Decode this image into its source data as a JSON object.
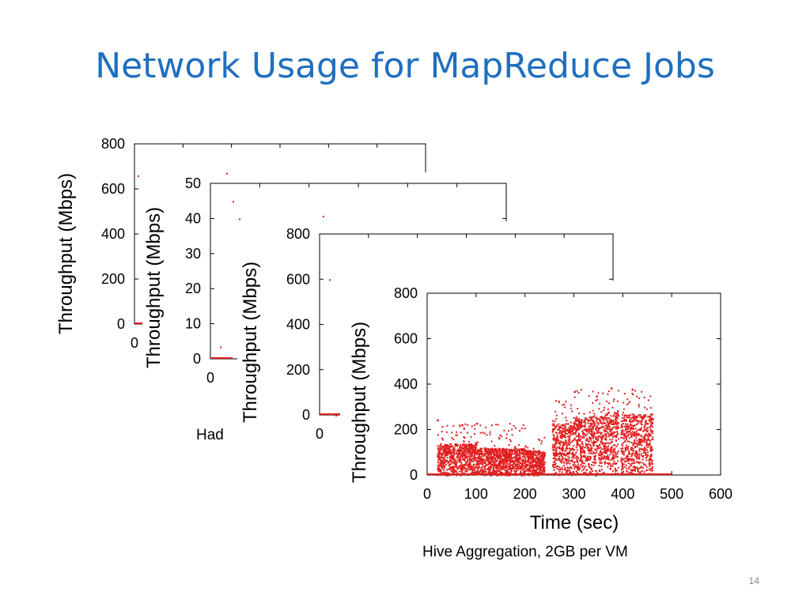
{
  "slide": {
    "title": "Network Usage for MapReduce Jobs",
    "page_number": "14",
    "partial_caption": "Had"
  },
  "colors": {
    "title": "#1f6fbf",
    "points": "#e02020",
    "axis": "#000000"
  },
  "chart_data": [
    {
      "type": "scatter",
      "ylabel": "Throughput (Mbps)",
      "xlabel": "",
      "ylim": [
        0,
        800
      ],
      "yticks": [
        "0",
        "200",
        "400",
        "600",
        "800"
      ],
      "xticks": [
        "0"
      ],
      "points": [
        [
          0,
          660
        ],
        [
          1,
          0
        ]
      ]
    },
    {
      "type": "scatter",
      "ylabel": "Throughput (Mbps)",
      "xlabel": "",
      "ylim": [
        0,
        50
      ],
      "yticks": [
        "0",
        "10",
        "20",
        "30",
        "40",
        "50"
      ],
      "xticks": [
        "0"
      ],
      "points": [
        [
          0,
          0.5
        ],
        [
          1,
          3.5
        ],
        [
          2,
          53
        ],
        [
          3,
          45
        ],
        [
          4,
          40
        ]
      ]
    },
    {
      "type": "scatter",
      "ylabel": "Throughput (Mbps)",
      "xlabel": "",
      "ylim": [
        0,
        800
      ],
      "yticks": [
        "0",
        "200",
        "400",
        "600",
        "800"
      ],
      "xticks": [
        "0"
      ],
      "points": [
        [
          0,
          880
        ],
        [
          1,
          600
        ],
        [
          2,
          0
        ]
      ]
    },
    {
      "type": "scatter",
      "title": "Hive Aggregation, 2GB per VM",
      "xlabel": "Time (sec)",
      "ylabel": "Throughput (Mbps)",
      "xlim": [
        0,
        600
      ],
      "ylim": [
        0,
        800
      ],
      "xticks": [
        "0",
        "100",
        "200",
        "300",
        "400",
        "500",
        "600"
      ],
      "yticks": [
        "0",
        "200",
        "400",
        "600",
        "800"
      ],
      "grid": false,
      "segments": [
        {
          "x_start": 20,
          "x_end": 100,
          "base_max": 140,
          "peak_max": 230
        },
        {
          "x_start": 100,
          "x_end": 200,
          "base_max": 120,
          "peak_max": 230
        },
        {
          "x_start": 200,
          "x_end": 240,
          "base_max": 110,
          "peak_max": 180
        },
        {
          "x_start": 255,
          "x_end": 300,
          "base_max": 230,
          "peak_max": 330
        },
        {
          "x_start": 300,
          "x_end": 360,
          "base_max": 260,
          "peak_max": 380
        },
        {
          "x_start": 360,
          "x_end": 390,
          "base_max": 280,
          "peak_max": 385
        },
        {
          "x_start": 395,
          "x_end": 460,
          "base_max": 270,
          "peak_max": 380
        }
      ],
      "notable_points": [
        [
          20,
          245
        ],
        [
          100,
          230
        ],
        [
          300,
          370
        ],
        [
          345,
          350
        ],
        [
          375,
          385
        ],
        [
          418,
          380
        ],
        [
          440,
          260
        ],
        [
          460,
          250
        ]
      ]
    }
  ]
}
